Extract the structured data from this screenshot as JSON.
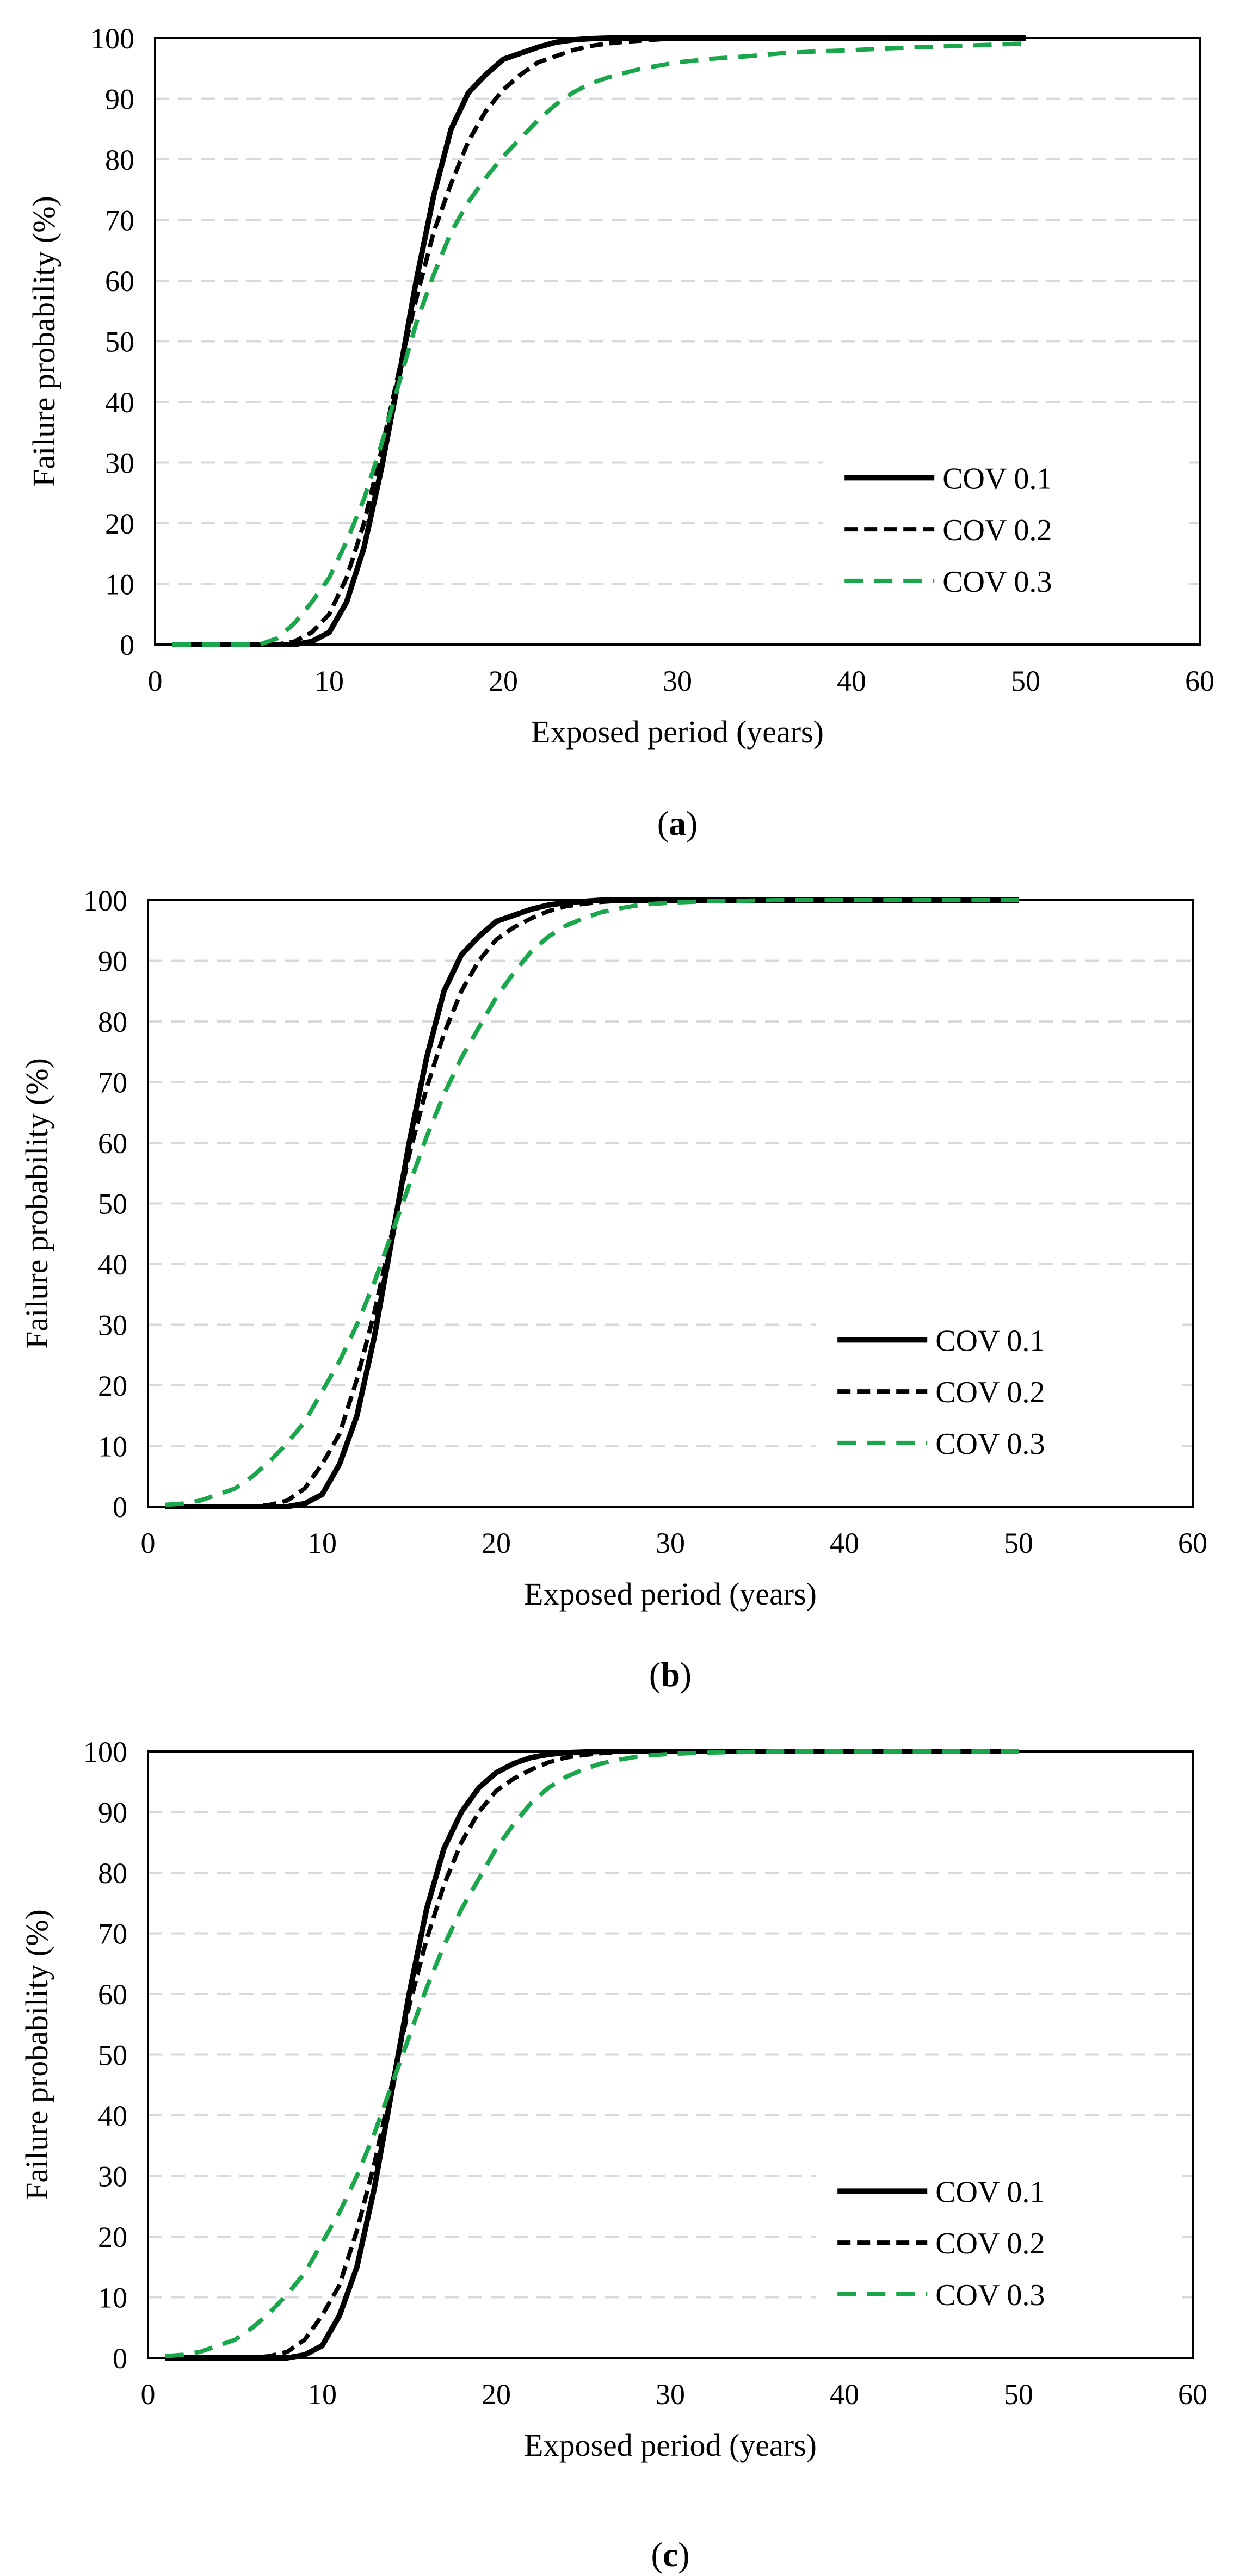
{
  "figure": {
    "panels": [
      "a",
      "b",
      "c"
    ]
  },
  "chart_data": [
    {
      "type": "line",
      "panel": "a",
      "caption": "(a)",
      "caption_letter": "a",
      "xlabel": "Exposed period (years)",
      "ylabel": "Failure probability (%)",
      "xlim": [
        0,
        60
      ],
      "ylim": [
        0,
        100
      ],
      "xticks": [
        0,
        10,
        20,
        30,
        40,
        50,
        60
      ],
      "yticks": [
        0,
        10,
        20,
        30,
        40,
        50,
        60,
        70,
        80,
        90,
        100
      ],
      "grid": "horizontal dashed",
      "legend_position": "bottom-right",
      "x": [
        1,
        2,
        3,
        4,
        5,
        6,
        7,
        8,
        9,
        10,
        11,
        12,
        13,
        14,
        15,
        16,
        17,
        18,
        19,
        20,
        21,
        22,
        23,
        24,
        25,
        26,
        27,
        28,
        29,
        30,
        32,
        34,
        36,
        38,
        40,
        42,
        44,
        46,
        48,
        50
      ],
      "series": [
        {
          "name": "COV 0.1",
          "color": "#000000",
          "style": "solid",
          "values": [
            0,
            0,
            0,
            0,
            0,
            0,
            0,
            0,
            0.5,
            2,
            7,
            16,
            29,
            44,
            60,
            74,
            85,
            91,
            94,
            96.5,
            97.5,
            98.5,
            99.3,
            99.7,
            99.9,
            100,
            100,
            100,
            100,
            100,
            100,
            100,
            100,
            100,
            100,
            100,
            100,
            100,
            100,
            100
          ]
        },
        {
          "name": "COV 0.2",
          "color": "#000000",
          "style": "dashed",
          "values": [
            0,
            0,
            0,
            0,
            0,
            0,
            0,
            0.5,
            2,
            5,
            11,
            20,
            32,
            45,
            57,
            68,
            76,
            83,
            88,
            91.5,
            94,
            96,
            97,
            98,
            98.7,
            99.1,
            99.4,
            99.6,
            99.8,
            99.9,
            100,
            100,
            100,
            100,
            100,
            100,
            100,
            100,
            100,
            100
          ]
        },
        {
          "name": "COV 0.3",
          "color": "#1aa64a",
          "style": "dashed",
          "values": [
            0,
            0,
            0,
            0,
            0,
            0,
            1,
            3.5,
            7,
            11,
            17,
            24,
            33,
            43,
            53,
            61,
            68,
            73,
            77,
            80.5,
            83.5,
            86.5,
            89,
            91,
            92.5,
            93.5,
            94.3,
            95,
            95.5,
            96,
            96.6,
            97,
            97.5,
            97.8,
            98,
            98.3,
            98.5,
            98.7,
            98.9,
            99.1
          ]
        }
      ]
    },
    {
      "type": "line",
      "panel": "b",
      "caption": "(b)",
      "caption_letter": "b",
      "xlabel": "Exposed period (years)",
      "ylabel": "Failure probability (%)",
      "xlim": [
        0,
        60
      ],
      "ylim": [
        0,
        100
      ],
      "xticks": [
        0,
        10,
        20,
        30,
        40,
        50,
        60
      ],
      "yticks": [
        0,
        10,
        20,
        30,
        40,
        50,
        60,
        70,
        80,
        90,
        100
      ],
      "grid": "horizontal dashed",
      "legend_position": "bottom-right",
      "x": [
        1,
        2,
        3,
        4,
        5,
        6,
        7,
        8,
        9,
        10,
        11,
        12,
        13,
        14,
        15,
        16,
        17,
        18,
        19,
        20,
        21,
        22,
        23,
        24,
        25,
        26,
        27,
        28,
        29,
        30,
        32,
        34,
        36,
        38,
        40,
        42,
        44,
        46,
        48,
        50
      ],
      "series": [
        {
          "name": "COV 0.1",
          "color": "#000000",
          "style": "solid",
          "values": [
            0,
            0,
            0,
            0,
            0,
            0,
            0,
            0,
            0.5,
            2,
            7,
            15,
            28,
            44,
            60,
            74,
            85,
            91,
            94,
            96.5,
            97.5,
            98.5,
            99.2,
            99.6,
            99.8,
            100,
            100,
            100,
            100,
            100,
            100,
            100,
            100,
            100,
            100,
            100,
            100,
            100,
            100,
            100
          ]
        },
        {
          "name": "COV 0.2",
          "color": "#000000",
          "style": "dashed",
          "values": [
            0,
            0,
            0,
            0,
            0,
            0,
            0.3,
            1,
            3,
            7,
            12,
            21,
            32,
            45,
            58,
            69,
            78,
            85,
            90,
            93.5,
            95.5,
            97,
            98.2,
            99,
            99.4,
            99.7,
            99.9,
            100,
            100,
            100,
            100,
            100,
            100,
            100,
            100,
            100,
            100,
            100,
            100,
            100
          ]
        },
        {
          "name": "COV 0.3",
          "color": "#1aa64a",
          "style": "dashed",
          "values": [
            0.3,
            0.5,
            1,
            2,
            3,
            5,
            7.5,
            10.5,
            14,
            19,
            24,
            30,
            37,
            45,
            53,
            61,
            68,
            74,
            79,
            84,
            88,
            91.5,
            94,
            95.8,
            97,
            98,
            98.6,
            99.1,
            99.4,
            99.6,
            99.8,
            99.9,
            100,
            100,
            100,
            100,
            100,
            100,
            100,
            100
          ]
        }
      ]
    },
    {
      "type": "line",
      "panel": "c",
      "caption": "(c)",
      "caption_letter": "c",
      "xlabel": "Exposed period (years)",
      "ylabel": "Failure probability (%)",
      "xlim": [
        0,
        60
      ],
      "ylim": [
        0,
        100
      ],
      "xticks": [
        0,
        10,
        20,
        30,
        40,
        50,
        60
      ],
      "yticks": [
        0,
        10,
        20,
        30,
        40,
        50,
        60,
        70,
        80,
        90,
        100
      ],
      "grid": "horizontal dashed",
      "legend_position": "bottom-right",
      "x": [
        1,
        2,
        3,
        4,
        5,
        6,
        7,
        8,
        9,
        10,
        11,
        12,
        13,
        14,
        15,
        16,
        17,
        18,
        19,
        20,
        21,
        22,
        23,
        24,
        25,
        26,
        27,
        28,
        29,
        30,
        32,
        34,
        36,
        38,
        40,
        42,
        44,
        46,
        48,
        50
      ],
      "series": [
        {
          "name": "COV 0.1",
          "color": "#000000",
          "style": "solid",
          "values": [
            0,
            0,
            0,
            0,
            0,
            0,
            0,
            0,
            0.5,
            2,
            7,
            15,
            28,
            44,
            60,
            74,
            84,
            90,
            94,
            96.5,
            98,
            99,
            99.5,
            99.8,
            99.9,
            100,
            100,
            100,
            100,
            100,
            100,
            100,
            100,
            100,
            100,
            100,
            100,
            100,
            100,
            100
          ]
        },
        {
          "name": "COV 0.2",
          "color": "#000000",
          "style": "dashed",
          "values": [
            0,
            0,
            0,
            0,
            0,
            0,
            0.3,
            1,
            3,
            7,
            12,
            21,
            32,
            45,
            58,
            69,
            78,
            85,
            90,
            93.5,
            95.5,
            97,
            98.2,
            99,
            99.4,
            99.7,
            99.9,
            100,
            100,
            100,
            100,
            100,
            100,
            100,
            100,
            100,
            100,
            100,
            100,
            100
          ]
        },
        {
          "name": "COV 0.3",
          "color": "#1aa64a",
          "style": "dashed",
          "values": [
            0.3,
            0.5,
            1,
            2,
            3,
            5,
            7.5,
            10.5,
            14,
            19,
            24,
            30,
            37,
            45,
            53,
            61,
            68,
            74,
            79,
            84,
            88,
            91.5,
            94,
            95.8,
            97,
            98,
            98.6,
            99.1,
            99.4,
            99.6,
            99.8,
            99.9,
            100,
            100,
            100,
            100,
            100,
            100,
            100,
            100
          ]
        }
      ]
    }
  ]
}
